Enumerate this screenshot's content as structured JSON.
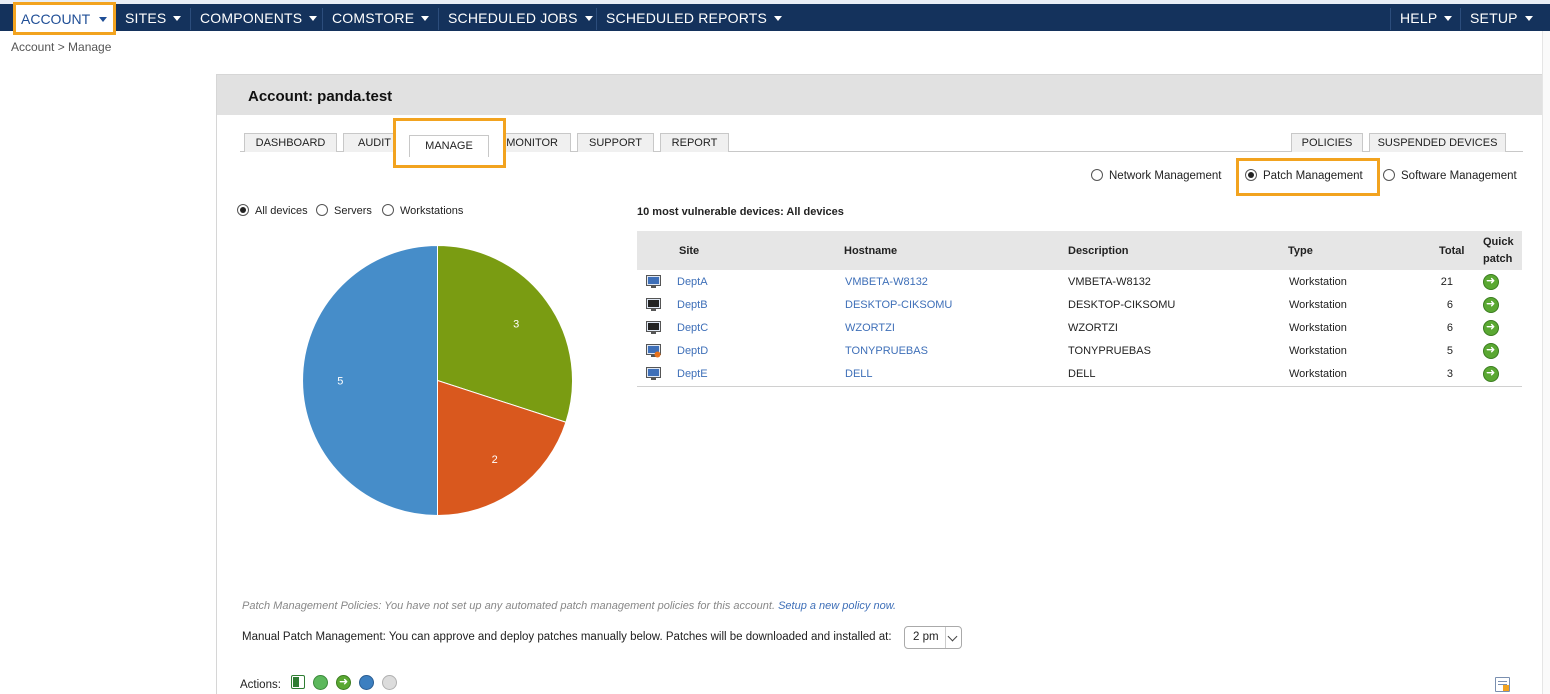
{
  "nav": {
    "account": "ACCOUNT",
    "sites": "SITES",
    "components": "COMPONENTS",
    "comstore": "COMSTORE",
    "scheduled_jobs": "SCHEDULED JOBS",
    "scheduled_reports": "SCHEDULED REPORTS",
    "help": "HELP",
    "setup": "SETUP"
  },
  "breadcrumb": "Account > Manage",
  "account_title": "Account: panda.test",
  "tabs": {
    "dashboard": "DASHBOARD",
    "audit": "AUDIT",
    "manage": "MANAGE",
    "monitor": "MONITOR",
    "support": "SUPPORT",
    "report": "REPORT",
    "policies": "POLICIES",
    "suspended_devices": "SUSPENDED DEVICES"
  },
  "management_mode": {
    "network": "Network Management",
    "patch": "Patch Management",
    "software": "Software Management",
    "selected": "patch"
  },
  "device_filter": {
    "all": "All devices",
    "servers": "Servers",
    "workstations": "Workstations",
    "selected": "all"
  },
  "chart_data": {
    "type": "pie",
    "slices": [
      {
        "label": "3",
        "value": 3,
        "color": "#7a9c12"
      },
      {
        "label": "2",
        "value": 2,
        "color": "#d9581e"
      },
      {
        "label": "5",
        "value": 5,
        "color": "#468dc9"
      }
    ]
  },
  "vulnerable": {
    "title": "10 most vulnerable devices: All devices",
    "headers": {
      "site": "Site",
      "hostname": "Hostname",
      "description": "Description",
      "type": "Type",
      "total": "Total",
      "quick_patch_1": "Quick",
      "quick_patch_2": "patch"
    },
    "rows": [
      {
        "site": "DeptA",
        "hostname": "VMBETA-W8132",
        "description": "VMBETA-W8132",
        "type": "Workstation",
        "total": "21"
      },
      {
        "site": "DeptB",
        "hostname": "DESKTOP-CIKSOMU",
        "description": "DESKTOP-CIKSOMU",
        "type": "Workstation",
        "total": "6"
      },
      {
        "site": "DeptC",
        "hostname": "WZORTZI",
        "description": "WZORTZI",
        "type": "Workstation",
        "total": "6"
      },
      {
        "site": "DeptD",
        "hostname": "TONYPRUEBAS",
        "description": "TONYPRUEBAS",
        "type": "Workstation",
        "total": "5"
      },
      {
        "site": "DeptE",
        "hostname": "DELL",
        "description": "DELL",
        "type": "Workstation",
        "total": "3"
      }
    ]
  },
  "policy_note": {
    "text": "Patch Management Policies: You have not set up any automated patch management policies for this account.",
    "link": "Setup a new policy now."
  },
  "manual": {
    "text": "Manual Patch Management: You can approve and deploy patches manually below. Patches will be downloaded and installed at:",
    "time": "2 pm"
  },
  "actions_label": "Actions:",
  "icons": {
    "device": "workstation-icon",
    "quick_patch": "arrow-right-circle-icon",
    "export": "excel-export-icon",
    "approve": "green-circle-icon",
    "deploy": "arrow-circle-icon",
    "info": "blue-globe-icon",
    "ignore": "grey-circle-icon",
    "column": "column-settings-icon"
  }
}
